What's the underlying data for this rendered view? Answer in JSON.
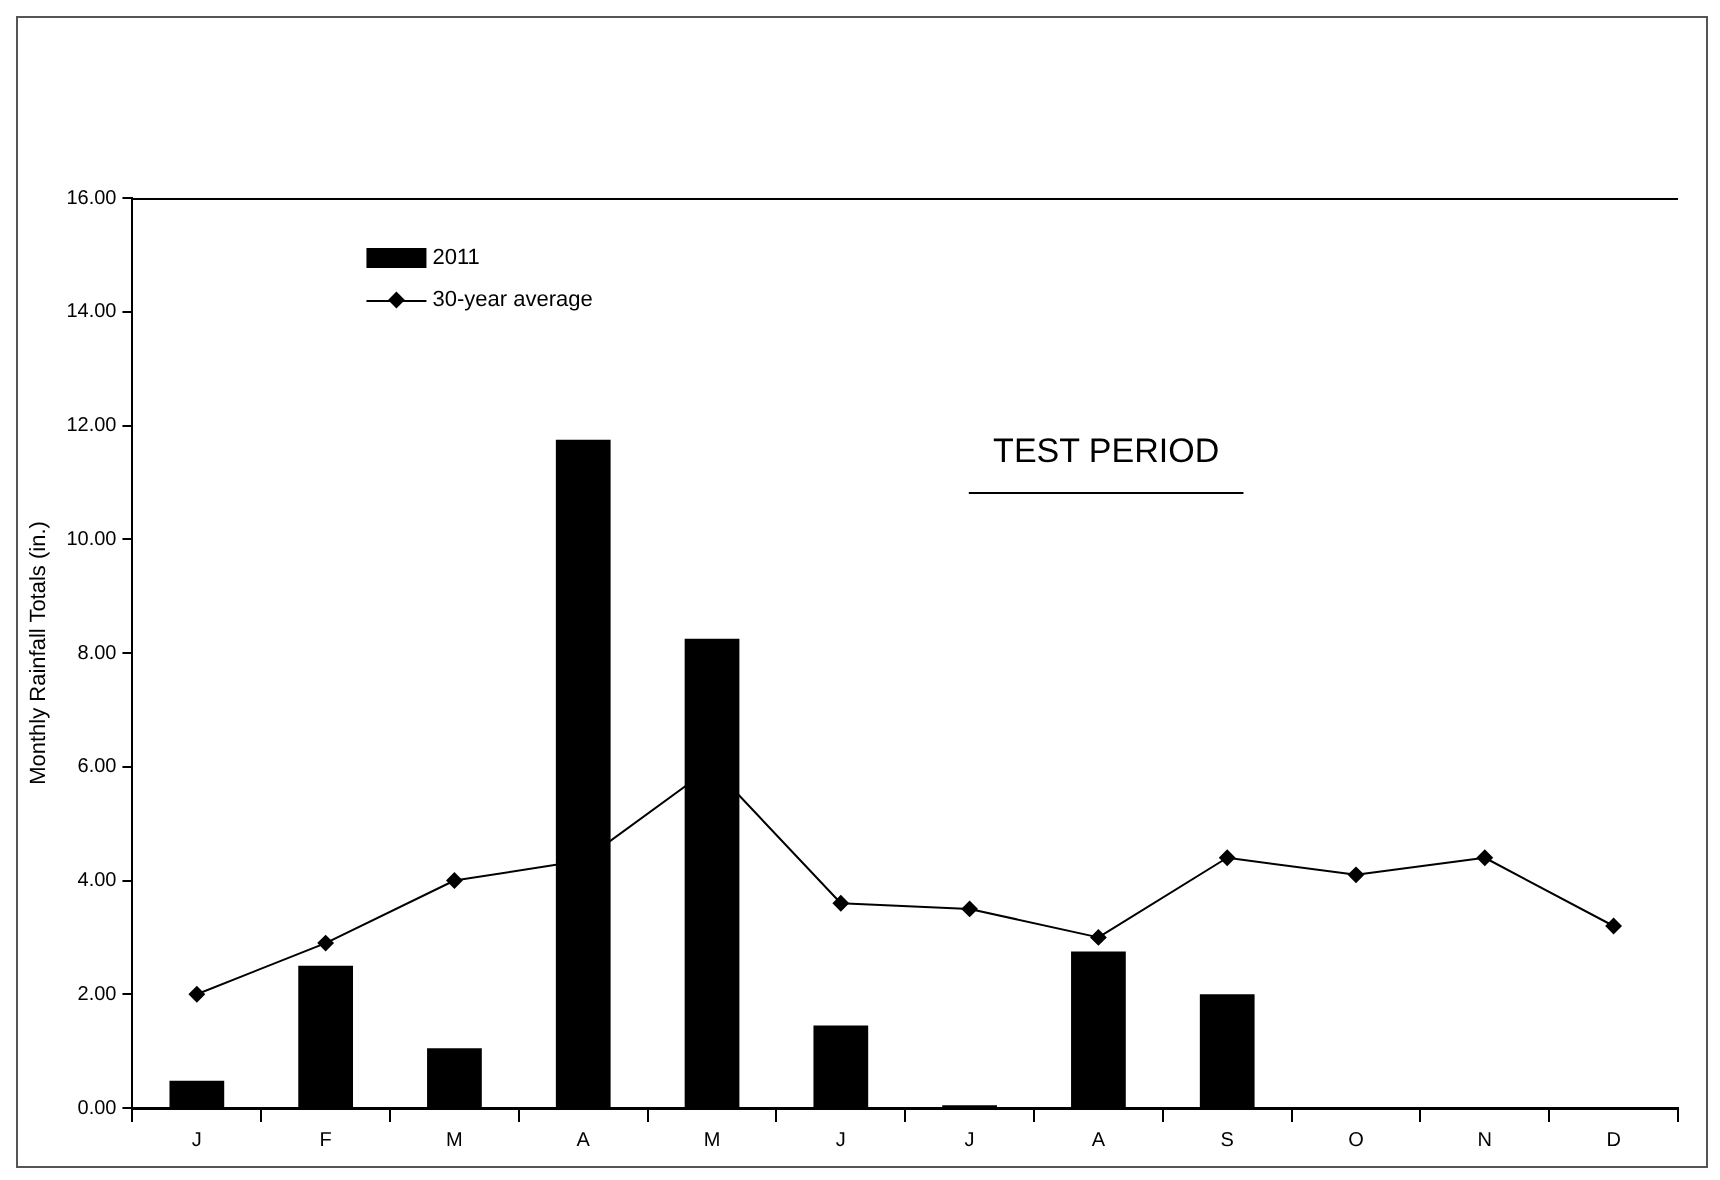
{
  "chart_data": {
    "type": "bar",
    "ylabel": "Monthly Rainfall Totals (in.)",
    "categories": [
      "J",
      "F",
      "M",
      "A",
      "M",
      "J",
      "J",
      "A",
      "S",
      "O",
      "N",
      "D"
    ],
    "series": [
      {
        "name": "2011",
        "color": "#000000",
        "values": [
          0.48,
          2.5,
          1.05,
          11.75,
          8.25,
          1.45,
          0.05,
          2.75,
          2.0,
          null,
          null,
          null
        ]
      },
      {
        "name": "30-year average",
        "type": "line",
        "color": "#000000",
        "marker": "diamond",
        "values": [
          2.0,
          2.9,
          4.0,
          4.35,
          6.0,
          3.6,
          3.5,
          3.0,
          4.4,
          4.1,
          4.4,
          3.2
        ]
      }
    ],
    "ylim": [
      0,
      16
    ],
    "yticks": [
      {
        "value": 0,
        "label": "0.00"
      },
      {
        "value": 2,
        "label": "2.00"
      },
      {
        "value": 4,
        "label": "4.00"
      },
      {
        "value": 6,
        "label": "6.00"
      },
      {
        "value": 8,
        "label": "8.00"
      },
      {
        "value": 10,
        "label": "10.00"
      },
      {
        "value": 12,
        "label": "12.00"
      },
      {
        "value": 14,
        "label": "14.00"
      },
      {
        "value": 16,
        "label": "16.00"
      }
    ],
    "grid": false,
    "legend": "top left",
    "annotations": [
      "TEST PERIOD"
    ]
  }
}
